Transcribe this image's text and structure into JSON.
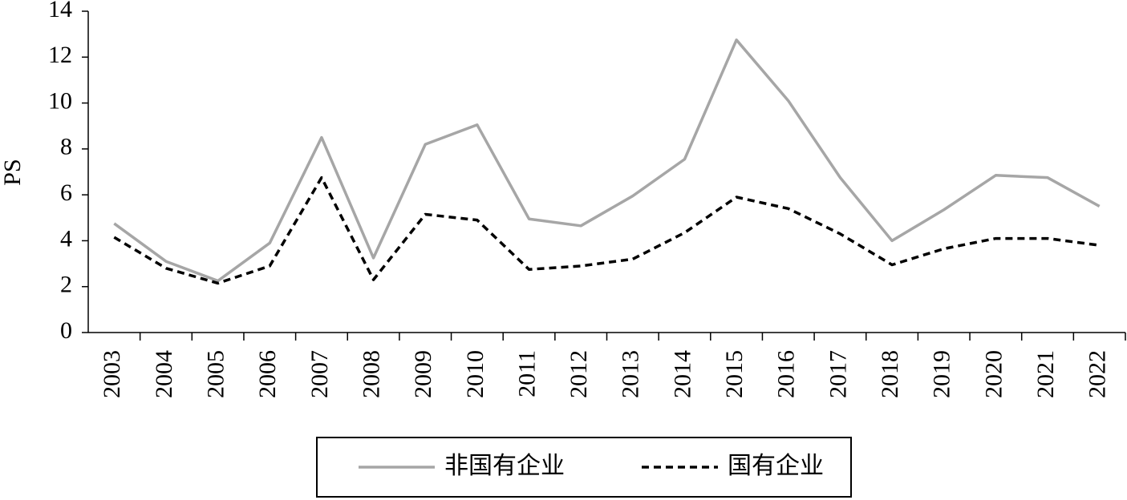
{
  "chart_data": {
    "type": "line",
    "y_label": "PS",
    "categories": [
      "2003",
      "2004",
      "2005",
      "2006",
      "2007",
      "2008",
      "2009",
      "2010",
      "2011",
      "2012",
      "2013",
      "2014",
      "2015",
      "2016",
      "2017",
      "2018",
      "2019",
      "2020",
      "2021",
      "2022"
    ],
    "series": [
      {
        "name": "非国有企业",
        "color": "#a6a6a6",
        "dash": false,
        "values": [
          4.75,
          3.1,
          2.25,
          3.9,
          8.5,
          3.25,
          8.2,
          9.05,
          4.95,
          4.65,
          5.95,
          7.55,
          12.75,
          10.1,
          6.75,
          4.0,
          5.35,
          6.85,
          6.75,
          5.5
        ]
      },
      {
        "name": "国有企业",
        "color": "#000000",
        "dash": true,
        "values": [
          4.15,
          2.8,
          2.15,
          2.9,
          6.75,
          2.3,
          5.15,
          4.9,
          2.75,
          2.9,
          3.2,
          4.35,
          5.9,
          5.4,
          4.3,
          2.95,
          3.65,
          4.1,
          4.1,
          3.8
        ]
      }
    ],
    "ylim": [
      0,
      14
    ],
    "yticks": [
      0,
      2,
      4,
      6,
      8,
      10,
      12,
      14
    ],
    "grid": false,
    "legend": "bottom"
  }
}
